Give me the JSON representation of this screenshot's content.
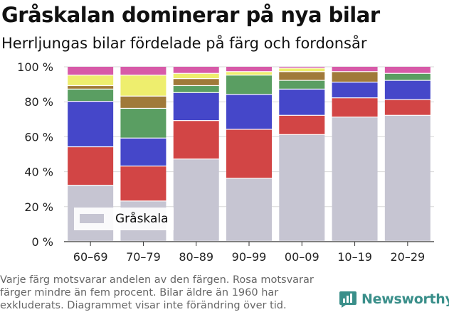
{
  "header": {
    "title": "Gråskalan dominerar på nya bilar",
    "subtitle": "Herrljungas bilar fördelade på färg och fordonsår"
  },
  "footnote": {
    "lines": [
      "Varje färg motsvarar andelen av den färgen. Rosa motsvarar",
      "färger mindre än fem procent. Bilar äldre än 1960 har",
      "exkluderats. Diagrammet visar inte förändring över tid."
    ]
  },
  "brand": {
    "name": "Newsworthy",
    "color": "#3a8f8a",
    "icon": "bar-chart-speech-bubble-icon"
  },
  "chart_data": {
    "type": "bar",
    "stacked": true,
    "categories": [
      "60–69",
      "70–79",
      "80–89",
      "90–99",
      "00–09",
      "10–19",
      "20–29"
    ],
    "y_ticks": [
      "0 %",
      "20 %",
      "40 %",
      "60 %",
      "80 %",
      "100 %"
    ],
    "ylim": [
      0,
      100
    ],
    "grid": true,
    "legend": {
      "position": "bottom-left",
      "entries": [
        "Gråskala"
      ]
    },
    "series": [
      {
        "name": "Gråskala",
        "color": "#c6c5d2",
        "values": [
          32,
          23,
          47,
          36,
          61,
          71,
          72
        ]
      },
      {
        "color": "#d24545",
        "values": [
          22,
          20,
          22,
          28,
          11,
          11,
          9
        ]
      },
      {
        "color": "#4547c9",
        "values": [
          26,
          16,
          16,
          20,
          15,
          9,
          11
        ]
      },
      {
        "color": "#5a9e62",
        "values": [
          7,
          17,
          4,
          11,
          5,
          0,
          4
        ]
      },
      {
        "color": "#a07a3a",
        "values": [
          2,
          7,
          4,
          0,
          5,
          6,
          0
        ]
      },
      {
        "color": "#eeee6e",
        "values": [
          6,
          12,
          3,
          2,
          2,
          0,
          0
        ]
      },
      {
        "color": "#d75aa8",
        "values": [
          5,
          5,
          4,
          3,
          1,
          3,
          4
        ]
      }
    ]
  }
}
